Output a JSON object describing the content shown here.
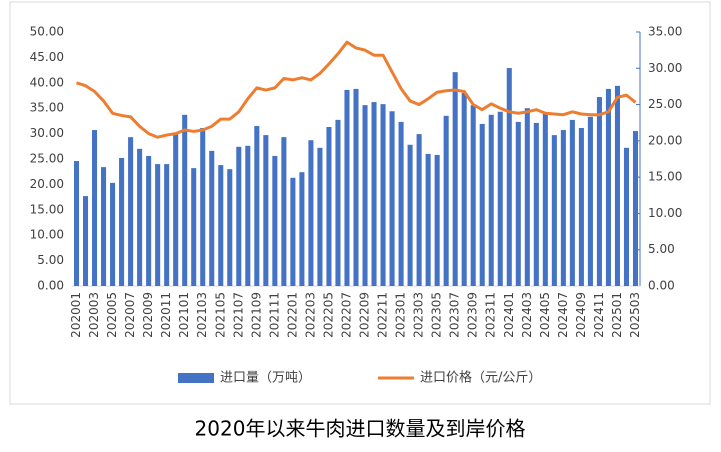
{
  "chart_data": {
    "type": "bar_line",
    "title": "2020年以来牛肉进口数量及到岸价格",
    "categories": [
      "202001",
      null,
      "202003",
      null,
      "202005",
      null,
      "202007",
      null,
      "202009",
      null,
      "202011",
      null,
      "202101",
      null,
      "202103",
      null,
      "202105",
      null,
      "202107",
      null,
      "202109",
      null,
      "202111",
      null,
      "202201",
      null,
      "202203",
      null,
      "202205",
      null,
      "202207",
      null,
      "202209",
      null,
      "202211",
      null,
      "202301",
      null,
      "202303",
      null,
      "202305",
      null,
      "202307",
      null,
      "202309",
      null,
      "202311",
      null,
      "202401",
      null,
      "202403",
      null,
      "202405",
      null,
      "202407",
      null,
      "202409",
      null,
      "202411",
      null,
      "202501",
      null,
      "202503"
    ],
    "series": [
      {
        "name": "进口量（万吨）",
        "color": "#4472c4",
        "type": "bar",
        "values": [
          24.6,
          17.7,
          30.7,
          23.4,
          20.3,
          25.2,
          29.3,
          27,
          25.6,
          24,
          24,
          29.9,
          33.7,
          23.2,
          31.1,
          26.6,
          23.8,
          23,
          27.4,
          27.6,
          31.5,
          29.7,
          25.6,
          29.3,
          21.3,
          22.4,
          28.7,
          27.2,
          31.3,
          32.7,
          38.6,
          38.8,
          35.6,
          36.2,
          35.8,
          34.4,
          32.3,
          27.8,
          29.9,
          26,
          25.8,
          33.5,
          42.1,
          38,
          35.6,
          31.9,
          33.7,
          34.3,
          42.9,
          32.3,
          35,
          32.1,
          34,
          29.7,
          30.7,
          32.7,
          31.1,
          33.3,
          37.2,
          38.8,
          39.4,
          27.2,
          30.5
        ]
      },
      {
        "name": "进口价格（元/公斤）",
        "color": "#ed7d31",
        "type": "line",
        "axis": "y2",
        "values": [
          28,
          27.6,
          26.8,
          25.5,
          23.8,
          23.5,
          23.3,
          22,
          21,
          20.5,
          20.8,
          21,
          21.5,
          21.3,
          21.5,
          22,
          23,
          23,
          24,
          25.8,
          27.3,
          27,
          27.3,
          28.6,
          28.4,
          28.7,
          28.4,
          29.3,
          30.6,
          32,
          33.6,
          32.8,
          32.5,
          31.8,
          31.8,
          29.5,
          27.2,
          25.5,
          25,
          25.8,
          26.7,
          26.9,
          27,
          26.8,
          25,
          24.3,
          25.1,
          24.5,
          24,
          23.8,
          24,
          24.3,
          23.8,
          23.7,
          23.6,
          24,
          23.7,
          23.6,
          23.6,
          24,
          26,
          26.3,
          25.3
        ]
      }
    ],
    "ylim": [
      0,
      50
    ],
    "yticks": [
      {
        "value": 0,
        "label": "0.00"
      },
      {
        "value": 5,
        "label": "5.00"
      },
      {
        "value": 10,
        "label": "10.00"
      },
      {
        "value": 15,
        "label": "15.00"
      },
      {
        "value": 20,
        "label": "20.00"
      },
      {
        "value": 25,
        "label": "25.00"
      },
      {
        "value": 30,
        "label": "30.00"
      },
      {
        "value": 35,
        "label": "35.00"
      },
      {
        "value": 40,
        "label": "40.00"
      },
      {
        "value": 45,
        "label": "45.00"
      },
      {
        "value": 50,
        "label": "50.00"
      }
    ],
    "y2lim": [
      0,
      35
    ],
    "y2ticks": [
      {
        "value": 0,
        "label": "0.00"
      },
      {
        "value": 5,
        "label": "5.00"
      },
      {
        "value": 10,
        "label": "10.00"
      },
      {
        "value": 15,
        "label": "15.00"
      },
      {
        "value": 20,
        "label": "20.00"
      },
      {
        "value": 25,
        "label": "25.00"
      },
      {
        "value": 30,
        "label": "30.00"
      },
      {
        "value": 35,
        "label": "35.00"
      }
    ],
    "grid": false,
    "legend": "bottom"
  }
}
